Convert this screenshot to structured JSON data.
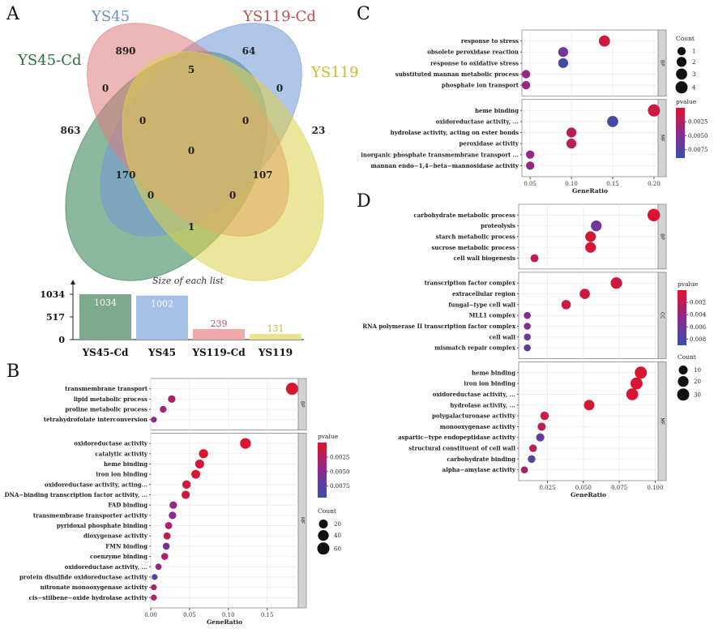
{
  "colors": {
    "venn": [
      "#2e7d4f",
      "#6f97d6",
      "#e07c7c",
      "#dcd24a"
    ],
    "venn_text": [
      "#2e6b47",
      "#6a8fcb",
      "#c24f4f",
      "#c9bb2e"
    ],
    "pvalue_high": "#e0142a",
    "pvalue_mid": "#8a2a8e",
    "pvalue_low": "#3a50a8",
    "grid": "#ebebeb",
    "strip": "#d3d3d3"
  },
  "panels": {
    "A": "A",
    "B": "B",
    "C": "C",
    "D": "D"
  },
  "venn": {
    "sets": [
      "YS45-Cd",
      "YS45",
      "YS119-Cd",
      "YS119"
    ],
    "regions": {
      "YS45_only": "890",
      "YS119Cd_only": "64",
      "YS45Cd_only": "863",
      "YS119_only": "23",
      "YS45_YS119Cd": "5",
      "YS45Cd_YS45": "0",
      "YS119Cd_YS119": "0",
      "YS45Cd_YS45_YS119Cd": "0",
      "YS45_YS119Cd_YS119": "0",
      "all_four": "0",
      "YS45Cd_YS119Cd": "170",
      "YS45_YS119": "107",
      "YS45Cd_YS119Cd_YS119": "0",
      "YS45Cd_YS45_YS119": "0",
      "YS45Cd_YS119": "1"
    }
  },
  "chart_data": [
    {
      "type": "bar",
      "panel": "A",
      "title": "Size of each list",
      "categories": [
        "YS45-Cd",
        "YS45",
        "YS119-Cd",
        "YS119"
      ],
      "values": [
        1034,
        1002,
        239,
        131
      ],
      "value_labels": [
        "1034",
        "1002",
        "239",
        "131"
      ],
      "yticks": [
        "1034",
        "517",
        "0"
      ],
      "ylim": [
        0,
        1034
      ]
    },
    {
      "type": "scatter",
      "panel": "B",
      "xlabel": "GeneRatio",
      "xlim": [
        0,
        0.19
      ],
      "xticks": [
        0,
        0.05,
        0.1,
        0.15
      ],
      "xtick_labels": [
        "0.00",
        "0.05",
        "0.10",
        "0.15"
      ],
      "legend_pvalue": {
        "title": "pvalue",
        "ticks": [
          "0.0025",
          "0.0050",
          "0.0075"
        ],
        "range": [
          0,
          0.0095
        ]
      },
      "legend_count": {
        "title": "Count",
        "labels": [
          "20",
          "40",
          "60"
        ],
        "values": [
          20,
          40,
          60
        ]
      },
      "facets": [
        {
          "name": "BP",
          "terms": [
            {
              "label": "transmembrane transport",
              "ratio": 0.182,
              "count": 60,
              "p": 0.0005
            },
            {
              "label": "lipid metabolic process",
              "ratio": 0.027,
              "count": 9,
              "p": 0.003
            },
            {
              "label": "proline metabolic process",
              "ratio": 0.016,
              "count": 5,
              "p": 0.004
            },
            {
              "label": "tetrahydrofolate interconversion",
              "ratio": 0.004,
              "count": 2,
              "p": 0.0045
            }
          ]
        },
        {
          "name": "MF",
          "terms": [
            {
              "label": "oxidoreductase activity",
              "ratio": 0.122,
              "count": 40,
              "p": 0.0003
            },
            {
              "label": "catalytic activity",
              "ratio": 0.068,
              "count": 22,
              "p": 0.0004
            },
            {
              "label": "heme binding",
              "ratio": 0.063,
              "count": 20,
              "p": 0.0005
            },
            {
              "label": "iron ion binding",
              "ratio": 0.058,
              "count": 19,
              "p": 0.0006
            },
            {
              "label": "oxidoreductase activity, acting...",
              "ratio": 0.046,
              "count": 15,
              "p": 0.001
            },
            {
              "label": "DNA−binding transcription factor activity, ...",
              "ratio": 0.045,
              "count": 14,
              "p": 0.001
            },
            {
              "label": "FAD binding",
              "ratio": 0.029,
              "count": 9,
              "p": 0.004
            },
            {
              "label": "transmembrane transporter activity",
              "ratio": 0.028,
              "count": 9,
              "p": 0.005
            },
            {
              "label": "pyridoxal phosphate binding",
              "ratio": 0.023,
              "count": 7,
              "p": 0.003
            },
            {
              "label": "dioxygenase activity",
              "ratio": 0.021,
              "count": 7,
              "p": 0.002
            },
            {
              "label": "FMN binding",
              "ratio": 0.02,
              "count": 6,
              "p": 0.006
            },
            {
              "label": "coenzyme binding",
              "ratio": 0.018,
              "count": 6,
              "p": 0.003
            },
            {
              "label": "oxidoreductase activity, ...",
              "ratio": 0.01,
              "count": 3,
              "p": 0.004
            },
            {
              "label": "protein disulfide oxidoreductase activity",
              "ratio": 0.005,
              "count": 2,
              "p": 0.0085
            },
            {
              "label": "nitronate monooxygenase activity",
              "ratio": 0.004,
              "count": 2,
              "p": 0.003
            },
            {
              "label": "cis−stilbene−oxide hydrolase activity",
              "ratio": 0.004,
              "count": 2,
              "p": 0.003
            }
          ]
        }
      ]
    },
    {
      "type": "scatter",
      "panel": "C",
      "xlabel": "GeneRatio",
      "xlim": [
        0.04,
        0.205
      ],
      "xticks": [
        0.05,
        0.1,
        0.15,
        0.2
      ],
      "xtick_labels": [
        "0.05",
        "0.10",
        "0.15",
        "0.20"
      ],
      "legend_pvalue": {
        "title": "pvalue",
        "ticks": [
          "0.0025",
          "0.0050",
          "0.0075"
        ],
        "range": [
          0,
          0.009
        ]
      },
      "legend_count": {
        "title": "Count",
        "labels": [
          "1",
          "2",
          "3",
          "4"
        ],
        "values": [
          1,
          2,
          3,
          4
        ]
      },
      "facets": [
        {
          "name": "BP",
          "terms": [
            {
              "label": "response to stress",
              "ratio": 0.14,
              "count": 3,
              "p": 0.001
            },
            {
              "label": "obsolete peroxidase reaction",
              "ratio": 0.09,
              "count": 2,
              "p": 0.006
            },
            {
              "label": "response to oxidative stress",
              "ratio": 0.09,
              "count": 2,
              "p": 0.0085
            },
            {
              "label": "substituted mannan metabolic process",
              "ratio": 0.045,
              "count": 1,
              "p": 0.004
            },
            {
              "label": "phosphate ion transport",
              "ratio": 0.045,
              "count": 1,
              "p": 0.004
            }
          ]
        },
        {
          "name": "MF",
          "terms": [
            {
              "label": "heme binding",
              "ratio": 0.2,
              "count": 4,
              "p": 0.001
            },
            {
              "label": "oxidoreductase activity, ...",
              "ratio": 0.15,
              "count": 3,
              "p": 0.0085
            },
            {
              "label": "hydrolase activity, acting on ester bonds",
              "ratio": 0.1,
              "count": 2,
              "p": 0.002
            },
            {
              "label": "peroxidase activity",
              "ratio": 0.1,
              "count": 2,
              "p": 0.002
            },
            {
              "label": "inorganic phosphate transmembrane transport ...",
              "ratio": 0.05,
              "count": 1,
              "p": 0.004
            },
            {
              "label": "mannan endo−1,4−beta−mannosidase activity",
              "ratio": 0.05,
              "count": 1,
              "p": 0.004
            }
          ]
        }
      ]
    },
    {
      "type": "scatter",
      "panel": "D",
      "xlabel": "GeneRatio",
      "xlim": [
        0.005,
        0.102
      ],
      "xticks": [
        0.025,
        0.05,
        0.075,
        0.1
      ],
      "xtick_labels": [
        "0.025",
        "0.050",
        "0.075",
        "0.100"
      ],
      "legend_pvalue": {
        "title": "pvalue",
        "ticks": [
          "0.002",
          "0.004",
          "0.006",
          "0.008"
        ],
        "range": [
          0,
          0.009
        ]
      },
      "legend_count": {
        "title": "Count",
        "labels": [
          "10",
          "20",
          "30"
        ],
        "values": [
          10,
          20,
          30
        ]
      },
      "facets": [
        {
          "name": "BP",
          "terms": [
            {
              "label": "carbohydrate metabolic process",
              "ratio": 0.099,
              "count": 33,
              "p": 0.0003
            },
            {
              "label": "proteolysis",
              "ratio": 0.059,
              "count": 20,
              "p": 0.006
            },
            {
              "label": "starch metabolic process",
              "ratio": 0.055,
              "count": 19,
              "p": 0.0005
            },
            {
              "label": "sucrose metabolic process",
              "ratio": 0.055,
              "count": 19,
              "p": 0.0005
            },
            {
              "label": "cell wall biogenesis",
              "ratio": 0.016,
              "count": 6,
              "p": 0.0015
            }
          ]
        },
        {
          "name": "CC",
          "terms": [
            {
              "label": "transcription factor complex",
              "ratio": 0.073,
              "count": 25,
              "p": 0.001
            },
            {
              "label": "extracellular region",
              "ratio": 0.051,
              "count": 17,
              "p": 0.001
            },
            {
              "label": "fungal−type cell wall",
              "ratio": 0.038,
              "count": 12,
              "p": 0.001
            },
            {
              "label": "MLL1 complex",
              "ratio": 0.011,
              "count": 3,
              "p": 0.005
            },
            {
              "label": "RNA polymerase II transcription factor complex",
              "ratio": 0.011,
              "count": 3,
              "p": 0.005
            },
            {
              "label": "cell wall",
              "ratio": 0.011,
              "count": 3,
              "p": 0.006
            },
            {
              "label": "mismatch repair complex",
              "ratio": 0.011,
              "count": 3,
              "p": 0.007
            }
          ]
        },
        {
          "name": "MF",
          "terms": [
            {
              "label": "heme binding",
              "ratio": 0.09,
              "count": 30,
              "p": 0.0003
            },
            {
              "label": "iron ion binding",
              "ratio": 0.087,
              "count": 29,
              "p": 0.0003
            },
            {
              "label": "oxidoreductase activity, ...",
              "ratio": 0.084,
              "count": 28,
              "p": 0.0003
            },
            {
              "label": "hydrolase activity, ...",
              "ratio": 0.054,
              "count": 18,
              "p": 0.0003
            },
            {
              "label": "polygalacturonase activity",
              "ratio": 0.023,
              "count": 8,
              "p": 0.001
            },
            {
              "label": "monooxygenase activity",
              "ratio": 0.021,
              "count": 7,
              "p": 0.002
            },
            {
              "label": "aspartic−type endopeptidase activity",
              "ratio": 0.02,
              "count": 7,
              "p": 0.007
            },
            {
              "label": "structural constituent of cell wall",
              "ratio": 0.015,
              "count": 5,
              "p": 0.002
            },
            {
              "label": "carbohydrate binding",
              "ratio": 0.014,
              "count": 5,
              "p": 0.008
            },
            {
              "label": "alpha−amylase activity",
              "ratio": 0.009,
              "count": 3,
              "p": 0.003
            }
          ]
        }
      ]
    }
  ]
}
